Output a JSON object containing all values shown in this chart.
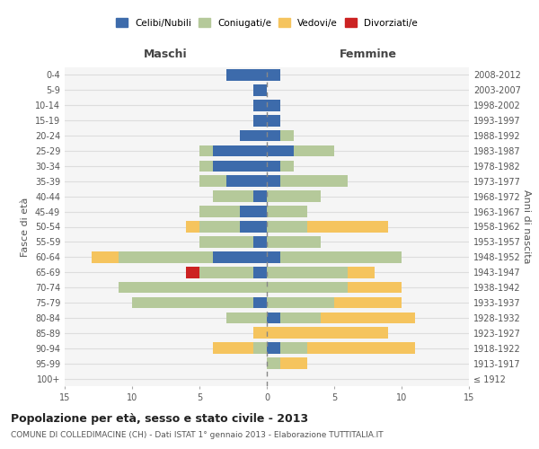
{
  "age_groups": [
    "100+",
    "95-99",
    "90-94",
    "85-89",
    "80-84",
    "75-79",
    "70-74",
    "65-69",
    "60-64",
    "55-59",
    "50-54",
    "45-49",
    "40-44",
    "35-39",
    "30-34",
    "25-29",
    "20-24",
    "15-19",
    "10-14",
    "5-9",
    "0-4"
  ],
  "birth_years": [
    "≤ 1912",
    "1913-1917",
    "1918-1922",
    "1923-1927",
    "1928-1932",
    "1933-1937",
    "1938-1942",
    "1943-1947",
    "1948-1952",
    "1953-1957",
    "1958-1962",
    "1963-1967",
    "1968-1972",
    "1973-1977",
    "1978-1982",
    "1983-1987",
    "1988-1992",
    "1993-1997",
    "1998-2002",
    "2003-2007",
    "2008-2012"
  ],
  "colors": {
    "celibi": "#3d6bab",
    "coniugati": "#b5c99a",
    "vedovi": "#f5c45e",
    "divorziati": "#cc2222"
  },
  "males": {
    "celibi": [
      0,
      0,
      0,
      0,
      0,
      1,
      0,
      1,
      4,
      1,
      2,
      2,
      1,
      3,
      4,
      4,
      2,
      1,
      1,
      1,
      3
    ],
    "coniugati": [
      0,
      0,
      1,
      0,
      3,
      9,
      11,
      4,
      7,
      4,
      3,
      3,
      3,
      2,
      1,
      1,
      0,
      0,
      0,
      0,
      0
    ],
    "vedovi": [
      0,
      0,
      3,
      1,
      0,
      0,
      0,
      0,
      2,
      0,
      1,
      0,
      0,
      0,
      0,
      0,
      0,
      0,
      0,
      0,
      0
    ],
    "divorziati": [
      0,
      0,
      0,
      0,
      0,
      0,
      0,
      1,
      0,
      0,
      0,
      0,
      0,
      0,
      0,
      0,
      0,
      0,
      0,
      0,
      0
    ]
  },
  "females": {
    "celibi": [
      0,
      0,
      1,
      0,
      1,
      0,
      0,
      0,
      1,
      0,
      0,
      0,
      0,
      1,
      1,
      2,
      1,
      1,
      1,
      0,
      1
    ],
    "coniugati": [
      0,
      1,
      2,
      0,
      3,
      5,
      6,
      6,
      9,
      4,
      3,
      3,
      4,
      5,
      1,
      3,
      1,
      0,
      0,
      0,
      0
    ],
    "vedovi": [
      0,
      2,
      8,
      9,
      7,
      5,
      4,
      2,
      0,
      0,
      6,
      0,
      0,
      0,
      0,
      0,
      0,
      0,
      0,
      0,
      0
    ],
    "divorziati": [
      0,
      0,
      0,
      0,
      0,
      0,
      0,
      0,
      0,
      0,
      0,
      0,
      0,
      0,
      0,
      0,
      0,
      0,
      0,
      0,
      0
    ]
  },
  "xlim": 15,
  "title": "Popolazione per età, sesso e stato civile - 2013",
  "subtitle": "COMUNE DI COLLEDIMACINE (CH) - Dati ISTAT 1° gennaio 2013 - Elaborazione TUTTITALIA.IT",
  "ylabel_left": "Fasce di età",
  "ylabel_right": "Anni di nascita",
  "xlabel_left": "Maschi",
  "xlabel_right": "Femmine",
  "legend_labels": [
    "Celibi/Nubili",
    "Coniugati/e",
    "Vedovi/e",
    "Divorziati/e"
  ],
  "background_color": "#ffffff",
  "grid_color": "#dddddd"
}
